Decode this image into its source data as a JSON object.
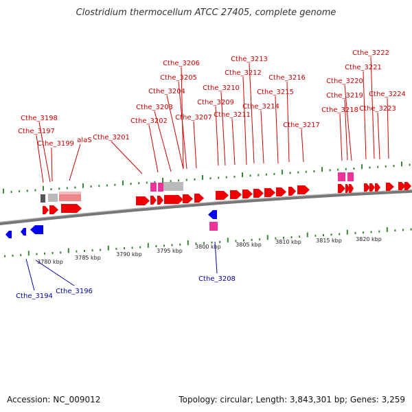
{
  "title": "Clostridium thermocellum ATCC 27405, complete genome",
  "footer": {
    "accession": "Accession: NC_009012",
    "summary": "Topology: circular; Length: 3,843,301 bp; Genes: 3,259"
  },
  "colors": {
    "forward_label": "#cc0000",
    "reverse_label": "#0000aa",
    "forward_gene": "#ee0000",
    "reverse_gene": "#0000ee",
    "rna_gene": "#ee3399",
    "pseudo_gene": "#bbbbbb",
    "highlight_gene": "#ee8888",
    "tick": "#338833",
    "backbone": "#888888"
  },
  "scale_labels": [
    "3780 kbp",
    "3785 kbp",
    "3790 kbp",
    "3795 kbp",
    "3800 kbp",
    "3805 kbp",
    "3810 kbp",
    "3815 kbp",
    "3820 kbp"
  ],
  "forward_genes": [
    "Cthe_3197",
    "Cthe_3198",
    "Cthe_3199",
    "alaS",
    "Cthe_3201",
    "Cthe_3202",
    "Cthe_3203",
    "Cthe_3204",
    "Cthe_3205",
    "Cthe_3206",
    "Cthe_3207",
    "Cthe_3209",
    "Cthe_3210",
    "Cthe_3211",
    "Cthe_3212",
    "Cthe_3213",
    "Cthe_3214",
    "Cthe_3215",
    "Cthe_3216",
    "Cthe_3217",
    "Cthe_3218",
    "Cthe_3219",
    "Cthe_3220",
    "Cthe_3221",
    "Cthe_3222",
    "Cthe_3223",
    "Cthe_3224"
  ],
  "reverse_genes": [
    "Cthe_3194",
    "Cthe_3196",
    "Cthe_3208"
  ]
}
